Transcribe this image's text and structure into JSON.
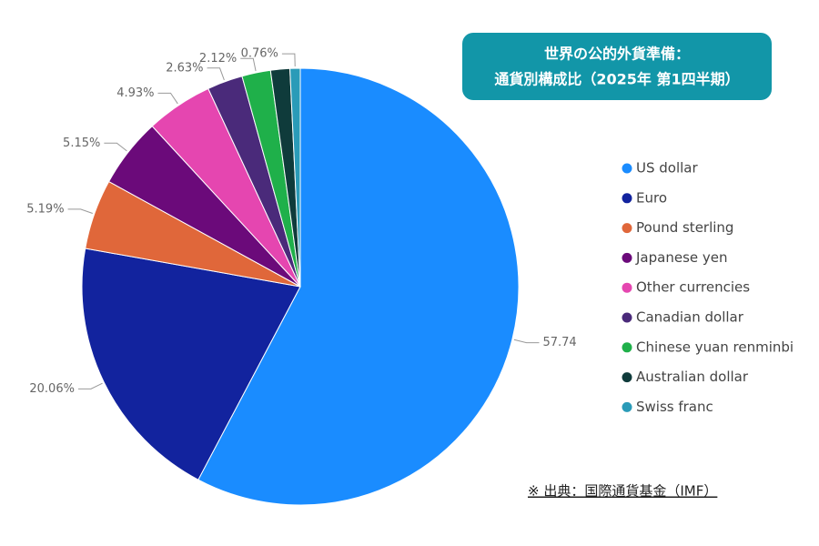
{
  "chart_data": {
    "type": "pie",
    "title": [
      "世界の公的外貨準備：",
      "通貨別構成比（2025年 第1四半期）"
    ],
    "source": "※ 出典：国際通貨基金（IMF）",
    "categories": [
      "US dollar",
      "Euro",
      "Pound sterling",
      "Japanese yen",
      "Other currencies",
      "Canadian dollar",
      "Chinese yuan renminbi",
      "Australian dollar",
      "Swiss franc"
    ],
    "values": [
      57.74,
      20.06,
      5.19,
      5.15,
      4.93,
      2.63,
      2.12,
      1.42,
      0.76
    ],
    "value_labels": [
      "57.74",
      "20.06%",
      "5.19%",
      "5.15%",
      "4.93%",
      "2.63%",
      "2.12%",
      null,
      "0.76%"
    ],
    "colors": [
      "#1a8cff",
      "#12239e",
      "#e0673a",
      "#6b0a7a",
      "#e546b0",
      "#4a2a7a",
      "#1fb04a",
      "#0f3b3b",
      "#2a9bb8"
    ],
    "legend": "right"
  }
}
